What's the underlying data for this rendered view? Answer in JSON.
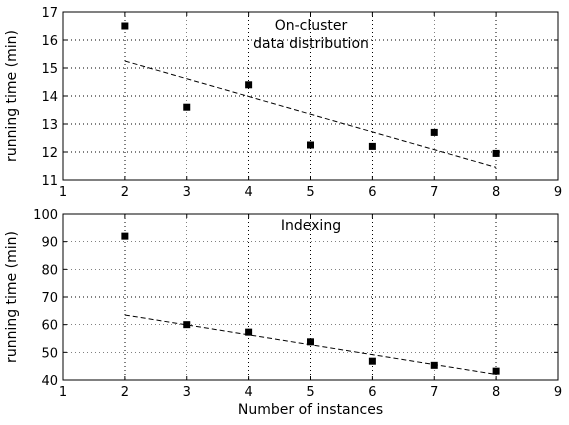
{
  "chart_data": [
    {
      "type": "scatter",
      "title": "",
      "annotation": [
        "On-cluster",
        "data distribution"
      ],
      "xlabel": "",
      "ylabel": "running time (min)",
      "xlim": [
        1,
        9
      ],
      "ylim": [
        11,
        17
      ],
      "xticks": [
        1,
        2,
        3,
        4,
        5,
        6,
        7,
        8,
        9
      ],
      "yticks": [
        11,
        12,
        13,
        14,
        15,
        16,
        17
      ],
      "grid": true,
      "points": [
        {
          "x": 2,
          "y": 16.5
        },
        {
          "x": 3,
          "y": 13.6
        },
        {
          "x": 4,
          "y": 14.4
        },
        {
          "x": 5,
          "y": 12.25
        },
        {
          "x": 6,
          "y": 12.2
        },
        {
          "x": 7,
          "y": 12.7
        },
        {
          "x": 8,
          "y": 11.95
        }
      ],
      "fit_line": [
        {
          "x": 2,
          "y": 15.25
        },
        {
          "x": 8,
          "y": 11.45
        }
      ]
    },
    {
      "type": "scatter",
      "title": "",
      "annotation": [
        "Indexing"
      ],
      "xlabel": "Number of instances",
      "ylabel": "running time (min)",
      "xlim": [
        1,
        9
      ],
      "ylim": [
        40,
        100
      ],
      "xticks": [
        1,
        2,
        3,
        4,
        5,
        6,
        7,
        8,
        9
      ],
      "yticks": [
        40,
        50,
        60,
        70,
        80,
        90,
        100
      ],
      "grid": true,
      "points": [
        {
          "x": 2,
          "y": 92
        },
        {
          "x": 3,
          "y": 60
        },
        {
          "x": 4,
          "y": 57.3
        },
        {
          "x": 5,
          "y": 53.8
        },
        {
          "x": 6,
          "y": 46.8
        },
        {
          "x": 7,
          "y": 45.3
        },
        {
          "x": 8,
          "y": 43.2
        }
      ],
      "fit_line": [
        {
          "x": 2,
          "y": 63.5
        },
        {
          "x": 8,
          "y": 42
        }
      ]
    }
  ]
}
